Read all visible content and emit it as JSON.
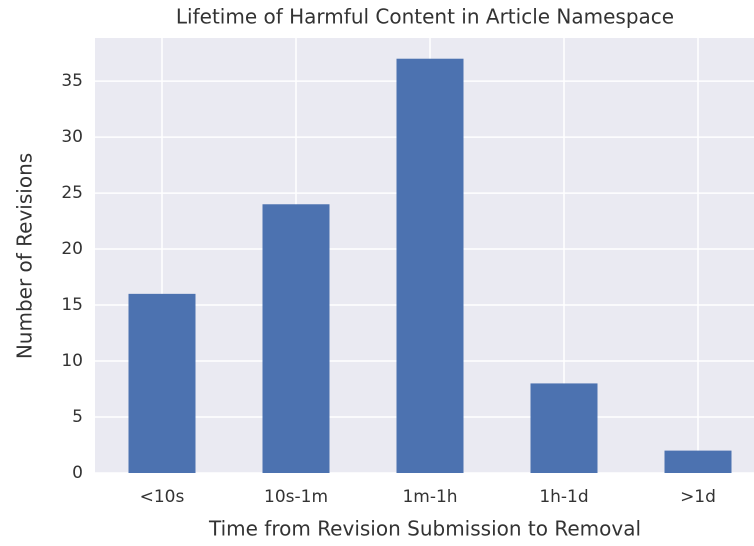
{
  "chart_data": {
    "type": "bar",
    "title": "Lifetime of Harmful Content in Article Namespace",
    "x_label": "Time from Revision Submission to Removal",
    "y_label": "Number of Revisions",
    "categories": [
      "<10s",
      "10s-1m",
      "1m-1h",
      "1h-1d",
      ">1d"
    ],
    "values": [
      16,
      24,
      37,
      8,
      2
    ],
    "color": "#4c72b0",
    "ylim": [
      0,
      38.85
    ],
    "yticks": [
      0,
      5,
      10,
      15,
      20,
      25,
      30,
      35
    ],
    "grid": true
  }
}
